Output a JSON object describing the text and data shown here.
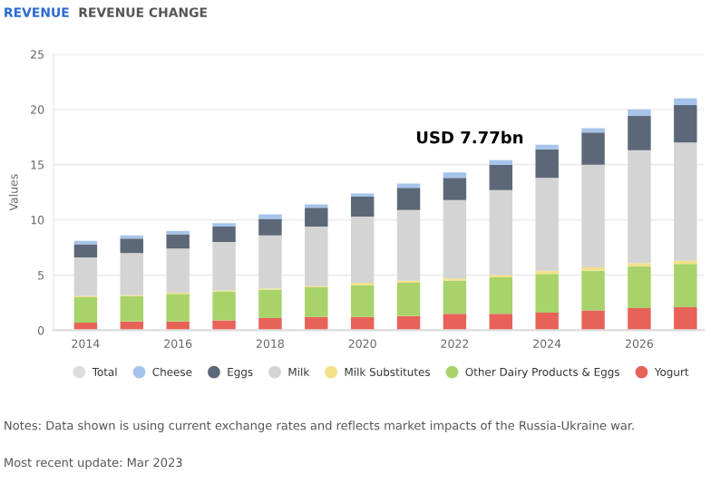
{
  "chart_data": {
    "type": "bar",
    "stacked": true,
    "ylabel": "Values",
    "x": [
      2014,
      2015,
      2016,
      2017,
      2018,
      2019,
      2020,
      2021,
      2022,
      2023,
      2024,
      2025,
      2026,
      2027
    ],
    "xlim": [
      2013.3,
      2027.4
    ],
    "xticks": [
      2014,
      2016,
      2018,
      2020,
      2022,
      2024,
      2026
    ],
    "ylim": [
      0,
      25
    ],
    "yticks": [
      0,
      5,
      10,
      15,
      20,
      25
    ],
    "grid": "y",
    "legend": "bottom",
    "series": [
      {
        "name": "Yogurt",
        "color": "#e8625a",
        "values": [
          0.7,
          0.8,
          0.8,
          0.9,
          1.1,
          1.2,
          1.2,
          1.3,
          1.5,
          1.5,
          1.6,
          1.8,
          2.0,
          2.1
        ]
      },
      {
        "name": "Other Dairy Products & Eggs",
        "color": "#a8d36a",
        "values": [
          2.3,
          2.3,
          2.5,
          2.6,
          2.6,
          2.7,
          2.9,
          3.0,
          3.0,
          3.3,
          3.5,
          3.6,
          3.8,
          3.9
        ]
      },
      {
        "name": "Milk Substitutes",
        "color": "#f3e08a",
        "values": [
          0.1,
          0.1,
          0.1,
          0.1,
          0.1,
          0.1,
          0.2,
          0.2,
          0.2,
          0.2,
          0.3,
          0.3,
          0.3,
          0.3
        ]
      },
      {
        "name": "Milk",
        "color": "#d4d4d4",
        "values": [
          3.5,
          3.8,
          4.0,
          4.4,
          4.8,
          5.4,
          6.0,
          6.4,
          7.1,
          7.7,
          8.4,
          9.3,
          10.2,
          10.7
        ]
      },
      {
        "name": "Eggs",
        "color": "#5c6878",
        "values": [
          1.2,
          1.3,
          1.3,
          1.4,
          1.5,
          1.7,
          1.8,
          2.0,
          2.0,
          2.3,
          2.6,
          2.9,
          3.1,
          3.4
        ]
      },
      {
        "name": "Cheese",
        "color": "#a6c4ea",
        "values": [
          0.3,
          0.3,
          0.3,
          0.3,
          0.4,
          0.3,
          0.3,
          0.4,
          0.5,
          0.4,
          0.4,
          0.4,
          0.6,
          0.6
        ]
      },
      {
        "name": "Total",
        "color": "#dddddd",
        "values": [
          null,
          null,
          null,
          null,
          null,
          null,
          null,
          null,
          null,
          null,
          null,
          null,
          null,
          null
        ]
      }
    ],
    "annotations": [
      "REVENUE",
      "REVENUE CHANGE",
      "USD 7.77bn",
      "Notes: Data shown is using current exchange rates and reflects market impacts of the Russia-Ukraine war.",
      "Most recent update: Mar 2023"
    ]
  }
}
